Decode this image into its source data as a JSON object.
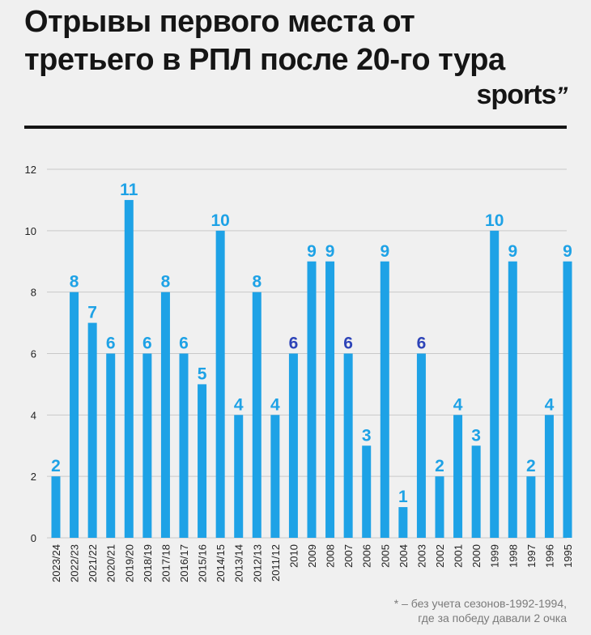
{
  "header": {
    "title": "Отрывы первого места от третьего в РПЛ после 20-го тура",
    "brand": "sports",
    "brand_mark": "’’"
  },
  "footnote": {
    "line1": "* – без учета сезонов-1992-1994,",
    "line2": "где за победу давали 2 очка"
  },
  "colors": {
    "bar": "#1ea2e6",
    "label_default": "#1ea2e6",
    "label_highlight": "#2e44b8",
    "grid": "#c9c9c9",
    "axis_text": "#222222",
    "title": "#151515"
  },
  "chart_data": {
    "type": "bar",
    "title": "Отрывы первого места от третьего в РПЛ после 20-го тура",
    "xlabel": "",
    "ylabel": "",
    "ylim": [
      0,
      12
    ],
    "yticks": [
      0,
      2,
      4,
      6,
      8,
      10,
      12
    ],
    "grid": true,
    "categories": [
      "2023/24",
      "2022/23",
      "2021/22",
      "2020/21",
      "2019/20",
      "2018/19",
      "2017/18",
      "2016/17",
      "2015/16",
      "2014/15",
      "2013/14",
      "2012/13",
      "2011/12",
      "2010",
      "2009",
      "2008",
      "2007",
      "2006",
      "2005",
      "2004",
      "2003",
      "2002",
      "2001",
      "2000",
      "1999",
      "1998",
      "1997",
      "1996",
      "1995"
    ],
    "values": [
      2,
      8,
      7,
      6,
      11,
      6,
      8,
      6,
      5,
      10,
      4,
      8,
      4,
      6,
      9,
      9,
      6,
      3,
      9,
      1,
      6,
      2,
      4,
      3,
      10,
      9,
      2,
      4,
      9
    ],
    "highlighted_labels": [
      "2010",
      "2007",
      "2003"
    ]
  }
}
